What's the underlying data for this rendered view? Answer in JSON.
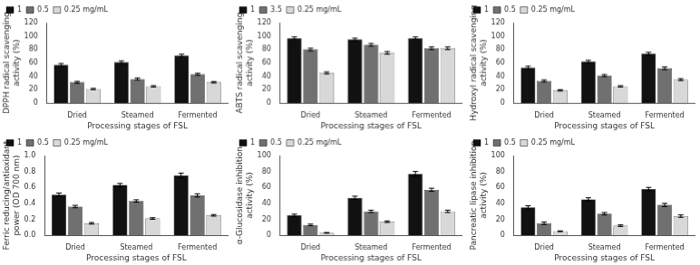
{
  "chart_data": [
    {
      "type": "bar",
      "x_label": "Processing stages of FSL",
      "y_label": "DPPH radical scavenging\nactivity (%)",
      "categories": [
        "Dried",
        "Steamed",
        "Fermented"
      ],
      "series": [
        {
          "name": "1",
          "color": "#111111",
          "values": [
            57,
            61,
            71
          ],
          "errors": [
            2,
            2,
            2
          ]
        },
        {
          "name": "0.5",
          "color": "#707070",
          "values": [
            31,
            36,
            43
          ],
          "errors": [
            1.5,
            1.5,
            1.5
          ]
        },
        {
          "name": "0.25 mg/mL",
          "color": "#d8d8d8",
          "values": [
            21,
            25,
            31
          ],
          "errors": [
            1,
            1,
            1
          ]
        }
      ],
      "ylim": [
        0,
        120
      ],
      "yticks": [
        0,
        20,
        40,
        60,
        80,
        100,
        120
      ],
      "grid": false,
      "legend": "upper left"
    },
    {
      "type": "bar",
      "x_label": "Processing stages of FSL",
      "y_label": "ABTS radical scavenging\nactivity (%)",
      "categories": [
        "Dried",
        "Steamed",
        "Fermented"
      ],
      "series": [
        {
          "name": "1",
          "color": "#111111",
          "values": [
            97,
            95,
            97
          ],
          "errors": [
            2,
            2,
            2
          ]
        },
        {
          "name": "3.5",
          "color": "#707070",
          "values": [
            80,
            87,
            82
          ],
          "errors": [
            2,
            2,
            2
          ]
        },
        {
          "name": "0.25 mg/mL",
          "color": "#d8d8d8",
          "values": [
            45,
            75,
            82
          ],
          "errors": [
            1.5,
            2,
            2
          ]
        }
      ],
      "ylim": [
        0,
        120
      ],
      "yticks": [
        0,
        20,
        40,
        60,
        80,
        100,
        120
      ],
      "grid": false,
      "legend": "upper left"
    },
    {
      "type": "bar",
      "x_label": "Processing stages of FSL",
      "y_label": "Hydroxyl radical scavenging\nactivity (%)",
      "categories": [
        "Dried",
        "Steamed",
        "Fermented"
      ],
      "series": [
        {
          "name": "1",
          "color": "#111111",
          "values": [
            53,
            62,
            74
          ],
          "errors": [
            2,
            2,
            2
          ]
        },
        {
          "name": "0.5",
          "color": "#707070",
          "values": [
            33,
            41,
            52
          ],
          "errors": [
            1.5,
            1.5,
            2
          ]
        },
        {
          "name": "0.25 mg/mL",
          "color": "#d8d8d8",
          "values": [
            19,
            25,
            35
          ],
          "errors": [
            1,
            1,
            1.5
          ]
        }
      ],
      "ylim": [
        0,
        120
      ],
      "yticks": [
        0,
        20,
        40,
        60,
        80,
        100,
        120
      ],
      "grid": false,
      "legend": "upper left"
    },
    {
      "type": "bar",
      "x_label": "Processing stages of FSL",
      "y_label": "Ferric reducing/antioxidant\npower (OD 700 nm)",
      "categories": [
        "Dried",
        "Steamed",
        "Fermented"
      ],
      "series": [
        {
          "name": "1",
          "color": "#111111",
          "values": [
            0.51,
            0.63,
            0.75
          ],
          "errors": [
            0.02,
            0.02,
            0.03
          ]
        },
        {
          "name": "0.5",
          "color": "#707070",
          "values": [
            0.36,
            0.43,
            0.5
          ],
          "errors": [
            0.015,
            0.015,
            0.02
          ]
        },
        {
          "name": "0.25 mg/mL",
          "color": "#d8d8d8",
          "values": [
            0.15,
            0.21,
            0.25
          ],
          "errors": [
            0.01,
            0.01,
            0.01
          ]
        }
      ],
      "ylim": [
        0,
        1.0
      ],
      "yticks": [
        {
          "value": 0,
          "label": "0.0"
        },
        0.2,
        0.4,
        0.6,
        0.8,
        {
          "value": 1.0,
          "label": "1.0"
        }
      ],
      "grid": false,
      "legend": "upper left"
    },
    {
      "type": "bar",
      "x_label": "Processing stages of FSL",
      "y_label": "α-Glucosidase inhibition\nactivity (%)",
      "categories": [
        "Dried",
        "Steamed",
        "Fermented"
      ],
      "series": [
        {
          "name": "1",
          "color": "#111111",
          "values": [
            25,
            47,
            77
          ],
          "errors": [
            1.5,
            2,
            3
          ]
        },
        {
          "name": "0.5",
          "color": "#707070",
          "values": [
            13,
            30,
            57
          ],
          "errors": [
            1,
            1.5,
            2
          ]
        },
        {
          "name": "0.25 mg/mL",
          "color": "#d8d8d8",
          "values": [
            3,
            17,
            30
          ],
          "errors": [
            0.5,
            1,
            1.5
          ]
        }
      ],
      "ylim": [
        0,
        100
      ],
      "yticks": [
        0,
        20,
        40,
        60,
        80,
        100
      ],
      "grid": false,
      "legend": "upper left"
    },
    {
      "type": "bar",
      "x_label": "Processing stages of FSL",
      "y_label": "Pancreatic lipase inhibition\nactivity (%)",
      "categories": [
        "Dried",
        "Steamed",
        "Fermented"
      ],
      "series": [
        {
          "name": "1",
          "color": "#111111",
          "values": [
            35,
            45,
            58
          ],
          "errors": [
            2,
            2,
            2
          ]
        },
        {
          "name": "0.5",
          "color": "#707070",
          "values": [
            15,
            27,
            38
          ],
          "errors": [
            1.5,
            1.5,
            2
          ]
        },
        {
          "name": "0.25 mg/mL",
          "color": "#d8d8d8",
          "values": [
            5,
            12,
            24
          ],
          "errors": [
            0.5,
            1,
            1.5
          ]
        }
      ],
      "ylim": [
        0,
        100
      ],
      "yticks": [
        0,
        20,
        40,
        60,
        80,
        100
      ],
      "grid": false,
      "legend": "upper left"
    }
  ]
}
